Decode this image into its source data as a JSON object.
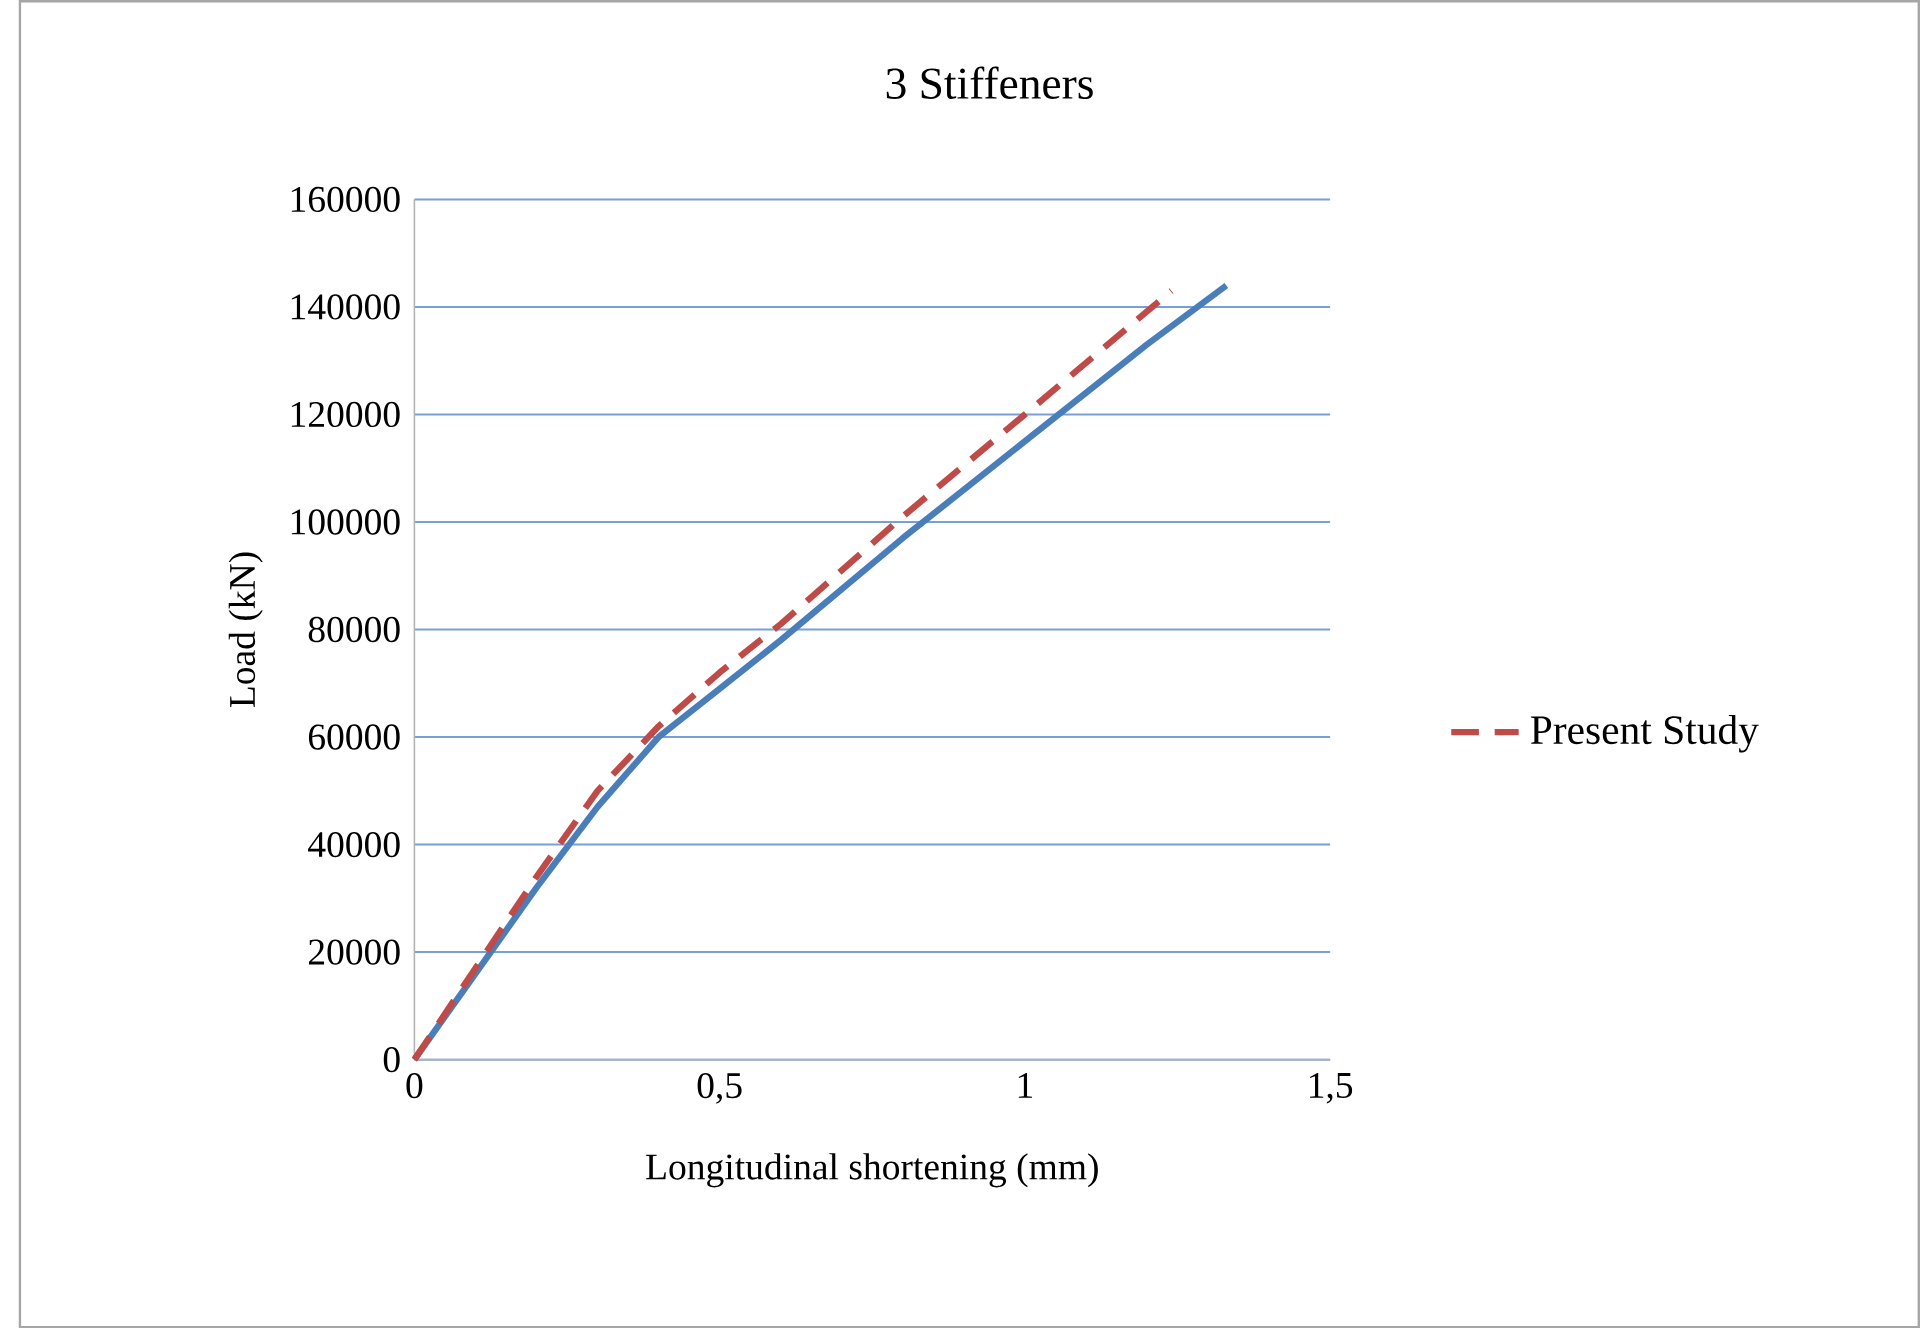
{
  "chart_data": {
    "type": "line",
    "title": "3 Stiffeners",
    "xlabel": "Longitudinal shortening (mm)",
    "ylabel": "Load  (kN)",
    "xlim": [
      0,
      1.5
    ],
    "xticks": [
      0,
      {
        "value": 0.5,
        "label": "0,5"
      },
      1,
      {
        "value": 1.5,
        "label": "1,5"
      }
    ],
    "ylim": [
      0,
      160000
    ],
    "yticks": [
      0,
      20000,
      40000,
      60000,
      80000,
      100000,
      120000,
      140000,
      160000
    ],
    "grid": "y",
    "legend": "right",
    "marker": "none",
    "series": [
      {
        "color": "#4a7ebb",
        "line_style": "solid",
        "x": [
          0,
          0.1,
          0.2,
          0.3,
          0.4,
          0.5,
          0.6,
          0.8,
          1.0,
          1.2,
          1.33
        ],
        "values": [
          0,
          16000,
          32000,
          47000,
          60000,
          69000,
          78000,
          97000,
          115000,
          133000,
          144000
        ]
      },
      {
        "name": "Present Study",
        "color": "#be4b48",
        "line_style": "dashed",
        "x": [
          0,
          0.1,
          0.2,
          0.3,
          0.4,
          0.5,
          0.6,
          0.8,
          1.0,
          1.24
        ],
        "values": [
          0,
          17000,
          34000,
          50000,
          62000,
          72000,
          81000,
          101000,
          120000,
          143000
        ]
      }
    ]
  }
}
